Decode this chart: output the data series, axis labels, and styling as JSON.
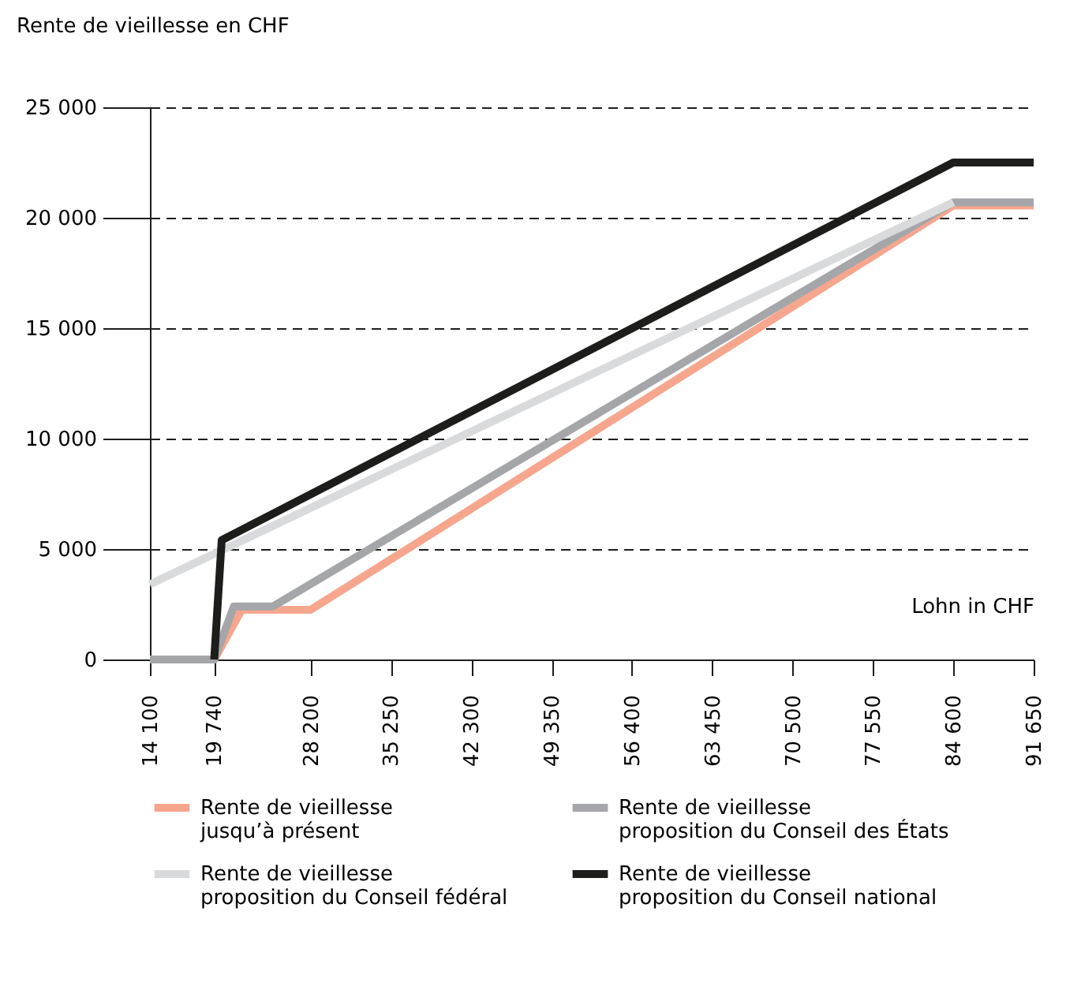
{
  "chart_data": {
    "type": "line",
    "ylabel": "Rente de vieillesse en CHF",
    "xlabel": "Lohn in CHF",
    "xlim": [
      14100,
      91650
    ],
    "xticks": [
      {
        "value": 14100,
        "label": "14 100"
      },
      {
        "value": 19740,
        "label": "19 740"
      },
      {
        "value": 28200,
        "label": "28 200"
      },
      {
        "value": 35250,
        "label": "35 250"
      },
      {
        "value": 42300,
        "label": "42 300"
      },
      {
        "value": 49350,
        "label": "49 350"
      },
      {
        "value": 56400,
        "label": "56 400"
      },
      {
        "value": 63450,
        "label": "63 450"
      },
      {
        "value": 70500,
        "label": "70 500"
      },
      {
        "value": 77550,
        "label": "77 550"
      },
      {
        "value": 84600,
        "label": "84 600"
      },
      {
        "value": 91650,
        "label": "91 650"
      }
    ],
    "ylim": [
      0,
      25000
    ],
    "yticks": [
      0,
      {
        "value": 5000,
        "label": "5 000"
      },
      {
        "value": 10000,
        "label": "10 000"
      },
      {
        "value": 15000,
        "label": "15 000"
      },
      {
        "value": 20000,
        "label": "20 000"
      },
      {
        "value": 25000,
        "label": "25 000"
      }
    ],
    "grid": "y",
    "legend": "bottom",
    "line_style": "solid",
    "marker": "none",
    "series": [
      {
        "name": "Rente de vieillesse\njusqu’à présent",
        "color": "#f7a68e",
        "x": [
          14100,
          19740,
          22150,
          28200,
          84600,
          91650
        ],
        "values": [
          0,
          0,
          2250,
          2250,
          20550,
          20550
        ]
      },
      {
        "name": "Rente de vieillesse\nproposition du Conseil des États",
        "color": "#a5a6aa",
        "x": [
          14100,
          19740,
          21470,
          24890,
          84600,
          91650
        ],
        "values": [
          0,
          0,
          2400,
          2400,
          20700,
          20700
        ]
      },
      {
        "name": "Rente de vieillesse\nproposition du Conseil fédéral",
        "color": "#d9dadb",
        "x": [
          14100,
          84600
        ],
        "values": [
          3400,
          20700
        ]
      },
      {
        "name": "Rente de vieillesse\nproposition du Conseil national",
        "color": "#1d1d1b",
        "x": [
          19740,
          20400,
          84600,
          91650
        ],
        "values": [
          0,
          5400,
          22500,
          22500
        ]
      }
    ]
  }
}
